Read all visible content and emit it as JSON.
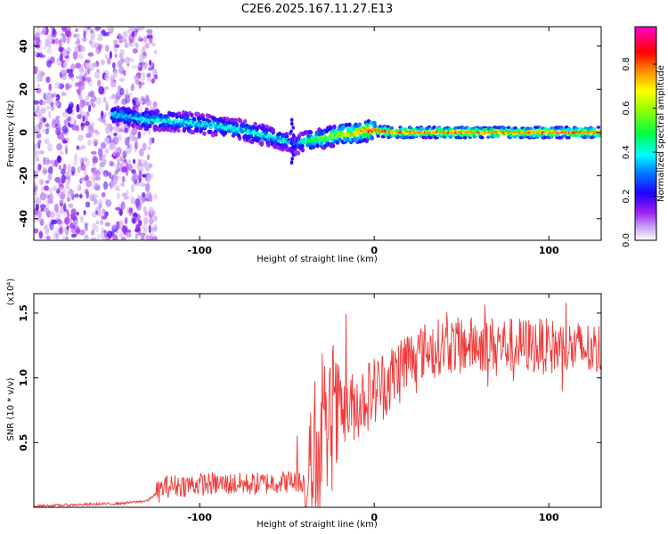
{
  "title": "C2E6.2025.167.11.27.E13",
  "chart_data": [
    {
      "type": "scatter",
      "description_note": "spectrogram",
      "xlabel": "Height of straight line (km)",
      "ylabel": "Frequency (Hz)",
      "xlim": [
        -195,
        130
      ],
      "ylim": [
        -50,
        49
      ],
      "xticks": [
        -100,
        0,
        100
      ],
      "xtick_labels": [
        "-100",
        "0",
        "100"
      ],
      "yticks": [
        -40,
        -20,
        0,
        20,
        40
      ],
      "ytick_labels": [
        "-40",
        "-20",
        "0",
        "20",
        "40"
      ],
      "colorbar": {
        "label": "Normalized spectral amplitude",
        "range": [
          0,
          0.97
        ],
        "ticks": [
          0.0,
          0.2,
          0.4,
          0.6,
          0.8
        ],
        "tick_labels": [
          "0.0",
          "0.2",
          "0.4",
          "0.6",
          "0.8"
        ],
        "colormap": "hsv-rainbow",
        "colors": [
          "#ffffff",
          "#a020f0",
          "#0000ff",
          "#00ffff",
          "#00ff00",
          "#ffff00",
          "#ff8000",
          "#ff0000",
          "#ff00ff"
        ]
      },
      "ridge": {
        "x": [
          -145,
          -130,
          -110,
          -90,
          -75,
          -60,
          -50,
          -45,
          -40,
          -30,
          -20,
          -10,
          0,
          10,
          30,
          60,
          90,
          130
        ],
        "y": [
          8,
          6,
          5,
          3,
          1,
          -2,
          -4,
          -6,
          -4,
          -3,
          -1,
          0,
          1,
          0,
          0,
          0,
          0,
          0
        ],
        "peak_amplitude": [
          0.4,
          0.45,
          0.45,
          0.45,
          0.45,
          0.45,
          0.45,
          0.3,
          0.5,
          0.6,
          0.7,
          0.8,
          0.9,
          0.85,
          0.85,
          0.85,
          0.85,
          0.85
        ]
      }
    },
    {
      "type": "line",
      "xlabel": "Height of straight line (km)",
      "ylabel": "SNR (10 * v/v)",
      "scale_label": "(x10⁴)",
      "xlim": [
        -195,
        130
      ],
      "ylim": [
        0,
        1.65
      ],
      "xticks": [
        -100,
        0,
        100
      ],
      "xtick_labels": [
        "-100",
        "0",
        "100"
      ],
      "yticks": [
        0.5,
        1.0,
        1.5
      ],
      "ytick_labels": [
        "0.5",
        "1.0",
        "1.5"
      ],
      "series": [
        {
          "color": "#ee3a3a",
          "x": [
            -195,
            -170,
            -145,
            -130,
            -120,
            -110,
            -100,
            -90,
            -80,
            -70,
            -60,
            -50,
            -40,
            -35,
            -30,
            -25,
            -20,
            -10,
            0,
            10,
            20,
            30,
            40,
            50,
            60,
            70,
            80,
            90,
            100,
            110,
            120,
            130
          ],
          "y": [
            0.01,
            0.02,
            0.03,
            0.05,
            0.16,
            0.17,
            0.18,
            0.18,
            0.18,
            0.18,
            0.19,
            0.2,
            0.2,
            0.3,
            0.45,
            0.6,
            0.7,
            0.8,
            0.9,
            1.0,
            1.15,
            1.22,
            1.25,
            1.25,
            1.26,
            1.26,
            1.25,
            1.25,
            1.24,
            1.23,
            1.22,
            1.21
          ]
        }
      ]
    }
  ]
}
